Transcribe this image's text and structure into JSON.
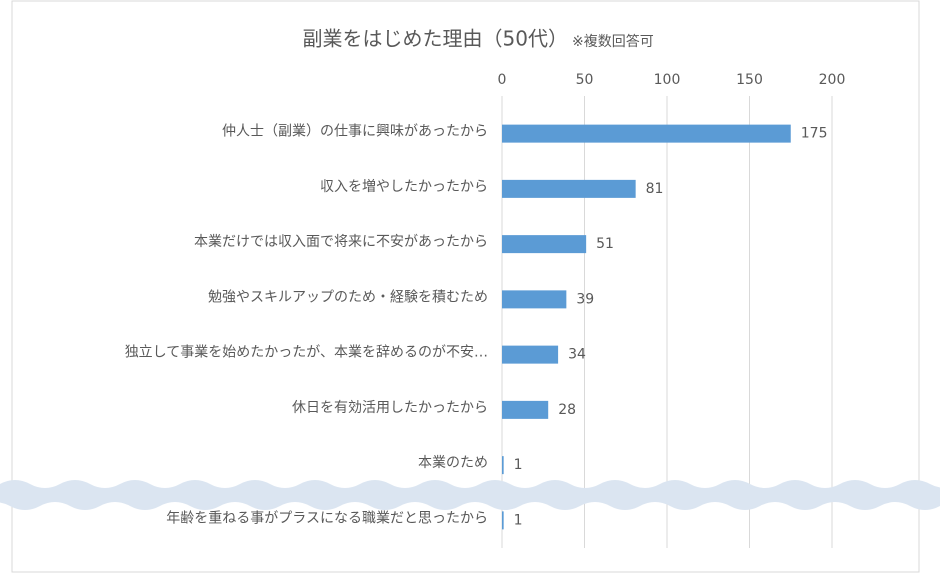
{
  "chart_data": {
    "type": "bar",
    "title": "副業をはじめた理由（50代）",
    "subtitle": "※複数回答可",
    "categories": [
      "仲人士（副業）の仕事に興味があったから",
      "収入を増やしたかったから",
      "本業だけでは収入面で将来に不安があったから",
      "勉強やスキルアップのため・経験を積むため",
      "独立して事業を始めたかったが、本業を辞めるのが不安…",
      "休日を有効活用したかったから",
      "本業のため",
      "年齢を重ねる事がプラスになる職業だと思ったから"
    ],
    "values": [
      175,
      81,
      51,
      39,
      34,
      28,
      1,
      1
    ],
    "color": "#5b9bd5",
    "xlim": [
      0,
      200
    ],
    "xticks": [
      0,
      50,
      100,
      150,
      200
    ],
    "grid": true
  }
}
